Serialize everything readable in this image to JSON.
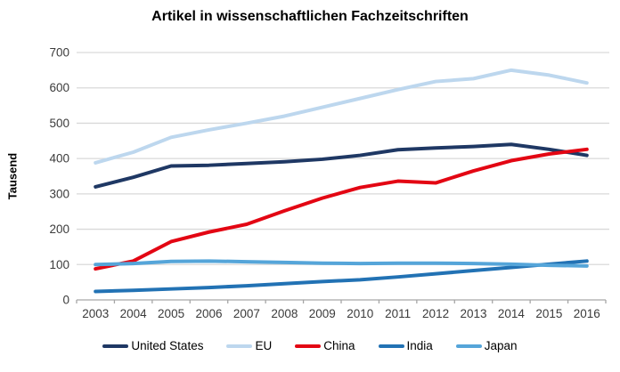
{
  "chart_data": {
    "type": "line",
    "title": "Artikel in wissenschaftlichen Fachzeitschriften",
    "ylabel": "Tausend",
    "xlabel": "",
    "ylim": [
      0,
      700
    ],
    "yticks": [
      0,
      100,
      200,
      300,
      400,
      500,
      600,
      700
    ],
    "grid": true,
    "legend_position": "bottom",
    "categories": [
      "2003",
      "2004",
      "2005",
      "2006",
      "2007",
      "2008",
      "2009",
      "2010",
      "2011",
      "2012",
      "2013",
      "2014",
      "2015",
      "2016"
    ],
    "series": [
      {
        "name": "United States",
        "color": "#1f3864",
        "values": [
          320,
          347,
          379,
          381,
          386,
          391,
          398,
          409,
          425,
          430,
          434,
          440,
          426,
          409
        ]
      },
      {
        "name": "EU",
        "color": "#bdd7ee",
        "values": [
          388,
          418,
          460,
          481,
          500,
          520,
          545,
          570,
          595,
          618,
          626,
          650,
          636,
          614
        ]
      },
      {
        "name": "China",
        "color": "#e30613",
        "values": [
          88,
          110,
          165,
          192,
          214,
          252,
          288,
          318,
          336,
          331,
          365,
          394,
          413,
          426
        ]
      },
      {
        "name": "India",
        "color": "#2272b4",
        "values": [
          24,
          27,
          31,
          35,
          40,
          46,
          52,
          57,
          65,
          74,
          83,
          92,
          101,
          110
        ]
      },
      {
        "name": "Japan",
        "color": "#55a5d9",
        "values": [
          100,
          103,
          109,
          110,
          108,
          106,
          104,
          103,
          104,
          104,
          103,
          101,
          98,
          96
        ]
      }
    ]
  },
  "style_colors": {
    "gridline": "#d9d9d9",
    "axis_line": "#a6a6a6",
    "tick_text": "#3b3b3b",
    "background": "#ffffff"
  }
}
